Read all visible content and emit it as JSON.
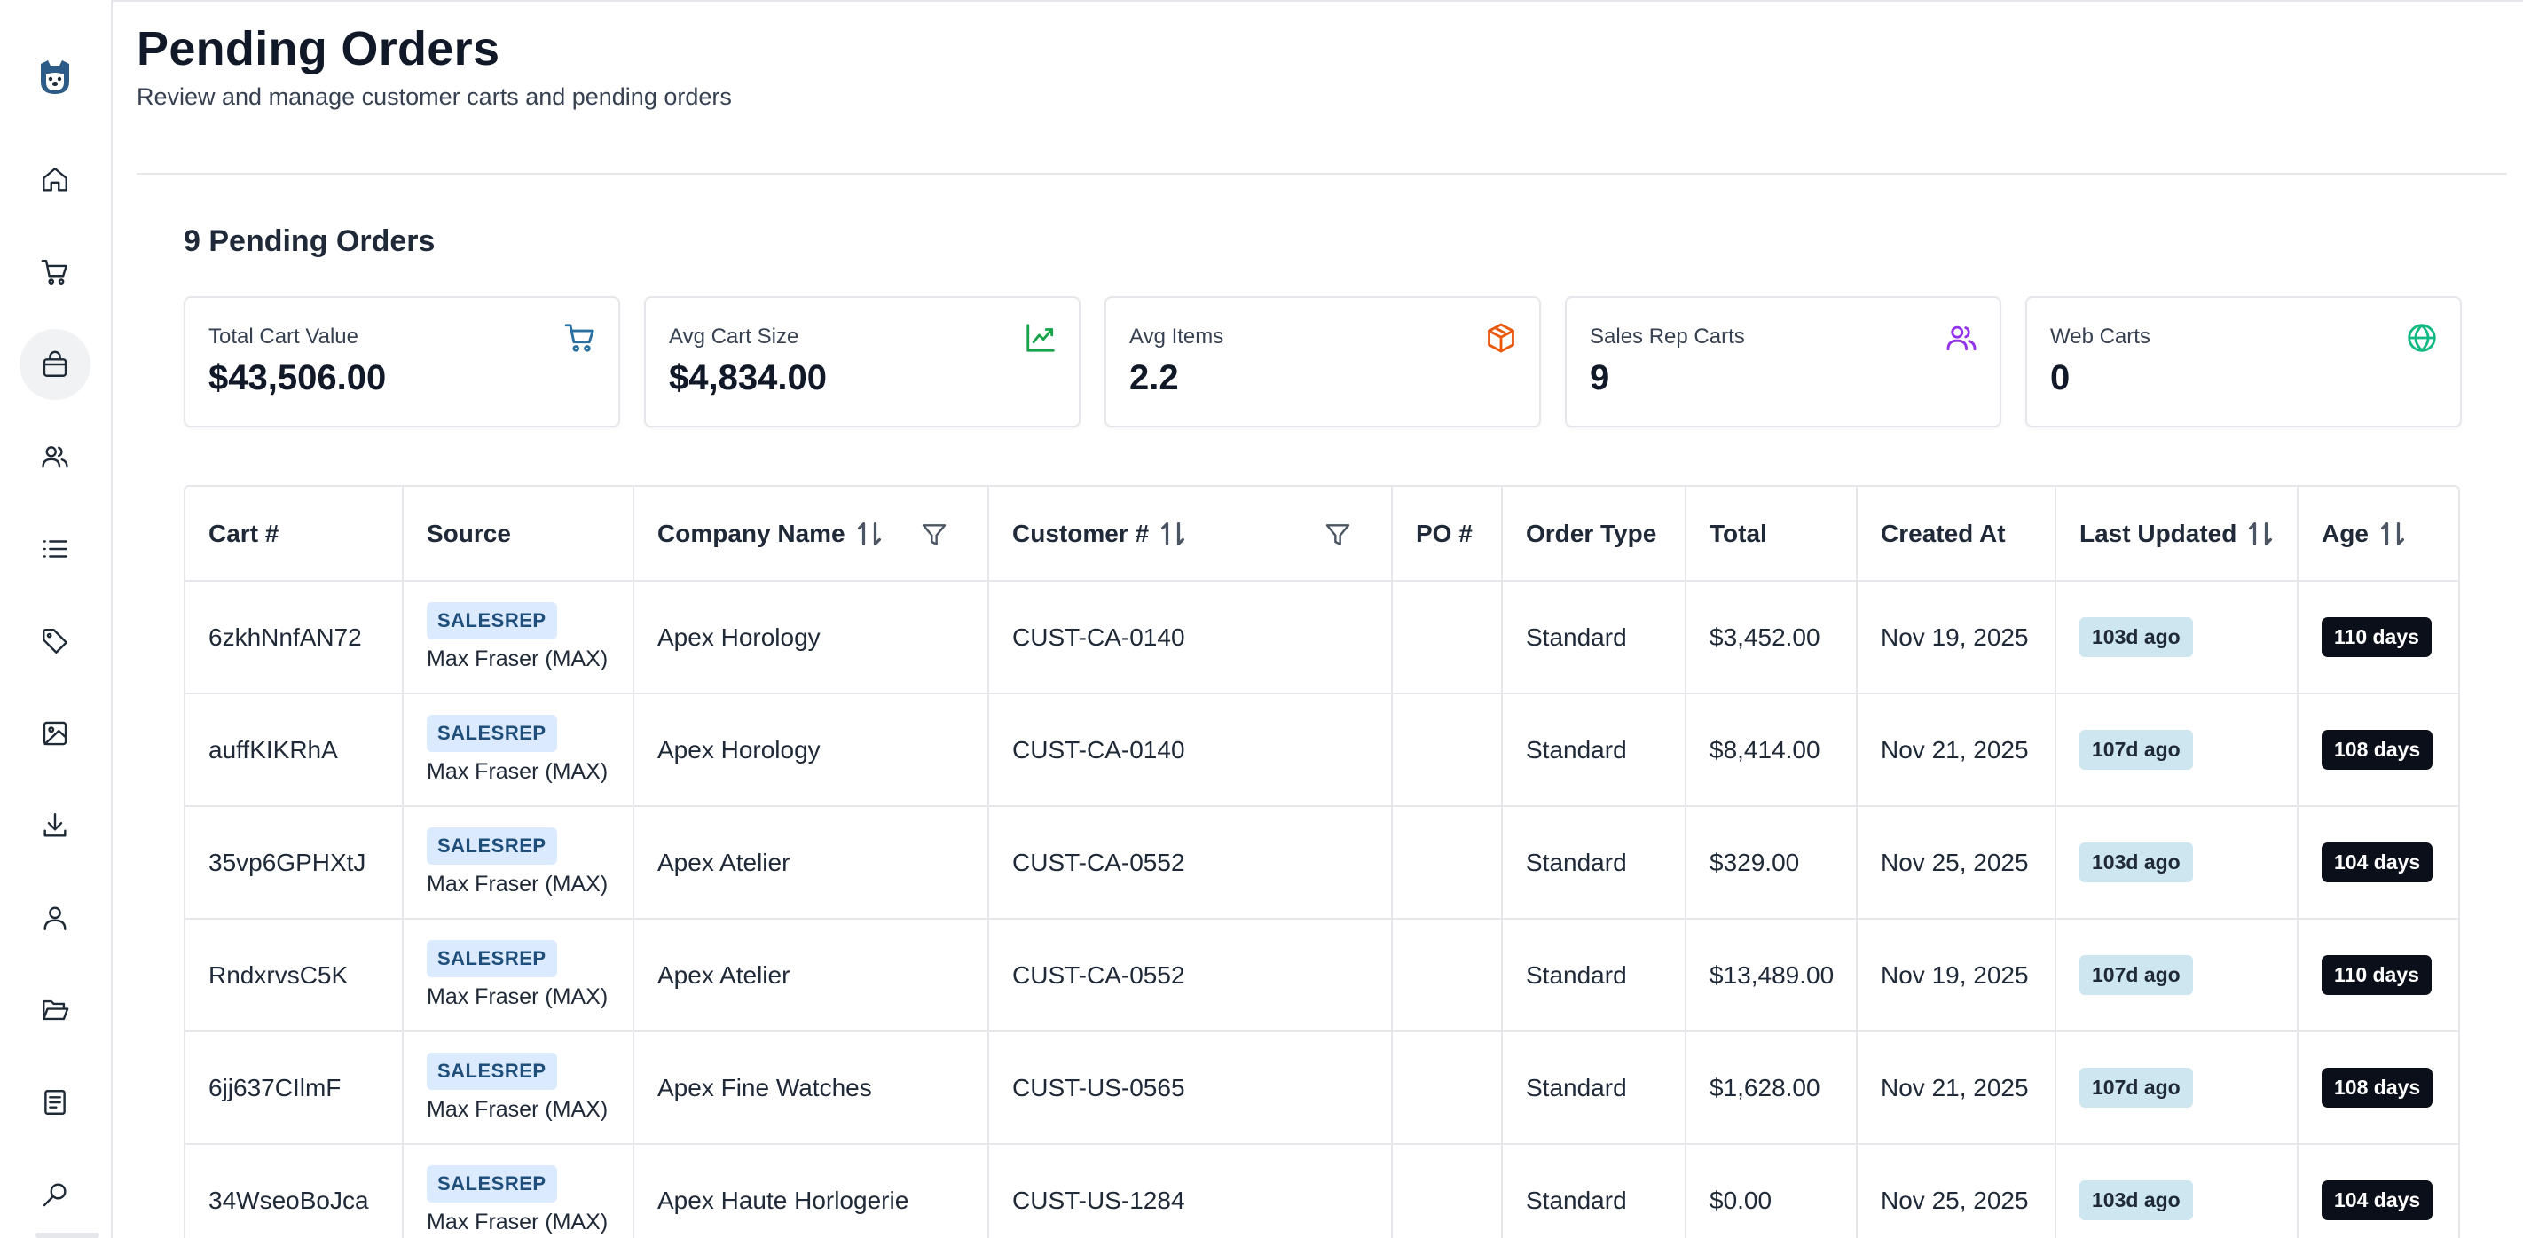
{
  "header": {
    "title": "Pending Orders",
    "subtitle": "Review and manage customer carts and pending orders"
  },
  "summary": {
    "count_title": "9 Pending Orders"
  },
  "stats": [
    {
      "label": "Total Cart Value",
      "value": "$43,506.00",
      "icon": "cart-icon",
      "color": "#2b6f9e"
    },
    {
      "label": "Avg Cart Size",
      "value": "$4,834.00",
      "icon": "trend-up-icon",
      "color": "#16a34a"
    },
    {
      "label": "Avg Items",
      "value": "2.2",
      "icon": "package-icon",
      "color": "#ea580c"
    },
    {
      "label": "Sales Rep Carts",
      "value": "9",
      "icon": "users-icon",
      "color": "#9333ea"
    },
    {
      "label": "Web Carts",
      "value": "0",
      "icon": "globe-icon",
      "color": "#10b981"
    }
  ],
  "table": {
    "columns": [
      "Cart #",
      "Source",
      "Company Name",
      "Customer #",
      "PO #",
      "Order Type",
      "Total",
      "Created At",
      "Last Updated",
      "Age"
    ],
    "rows": [
      {
        "cart": "6zkhNnfAN72",
        "source": "SALESREP",
        "rep": "Max Fraser (MAX)",
        "company": "Apex Horology",
        "customer": "CUST-CA-0140",
        "po": "",
        "type": "Standard",
        "total": "$3,452.00",
        "created": "Nov 19, 2025",
        "updated": "103d ago",
        "age": "110 days"
      },
      {
        "cart": "auffKIKRhA",
        "source": "SALESREP",
        "rep": "Max Fraser (MAX)",
        "company": "Apex Horology",
        "customer": "CUST-CA-0140",
        "po": "",
        "type": "Standard",
        "total": "$8,414.00",
        "created": "Nov 21, 2025",
        "updated": "107d ago",
        "age": "108 days"
      },
      {
        "cart": "35vp6GPHXtJ",
        "source": "SALESREP",
        "rep": "Max Fraser (MAX)",
        "company": "Apex Atelier",
        "customer": "CUST-CA-0552",
        "po": "",
        "type": "Standard",
        "total": "$329.00",
        "created": "Nov 25, 2025",
        "updated": "103d ago",
        "age": "104 days"
      },
      {
        "cart": "RndxrvsC5K",
        "source": "SALESREP",
        "rep": "Max Fraser (MAX)",
        "company": "Apex Atelier",
        "customer": "CUST-CA-0552",
        "po": "",
        "type": "Standard",
        "total": "$13,489.00",
        "created": "Nov 19, 2025",
        "updated": "107d ago",
        "age": "110 days"
      },
      {
        "cart": "6jj637CIlmF",
        "source": "SALESREP",
        "rep": "Max Fraser (MAX)",
        "company": "Apex Fine Watches",
        "customer": "CUST-US-0565",
        "po": "",
        "type": "Standard",
        "total": "$1,628.00",
        "created": "Nov 21, 2025",
        "updated": "107d ago",
        "age": "108 days"
      },
      {
        "cart": "34WseoBoJca",
        "source": "SALESREP",
        "rep": "Max Fraser (MAX)",
        "company": "Apex Haute Horlogerie",
        "customer": "CUST-US-1284",
        "po": "",
        "type": "Standard",
        "total": "$0.00",
        "created": "Nov 25, 2025",
        "updated": "103d ago",
        "age": "104 days"
      }
    ]
  },
  "sidebar": {
    "logo": "bear-logo-icon",
    "items": [
      "home-icon",
      "cart-icon",
      "shopping-bag-icon",
      "users-icon",
      "list-icon",
      "tag-icon",
      "image-icon",
      "download-icon",
      "user-icon",
      "folder-open-icon",
      "document-icon",
      "search-icon"
    ],
    "active_index": 2
  }
}
